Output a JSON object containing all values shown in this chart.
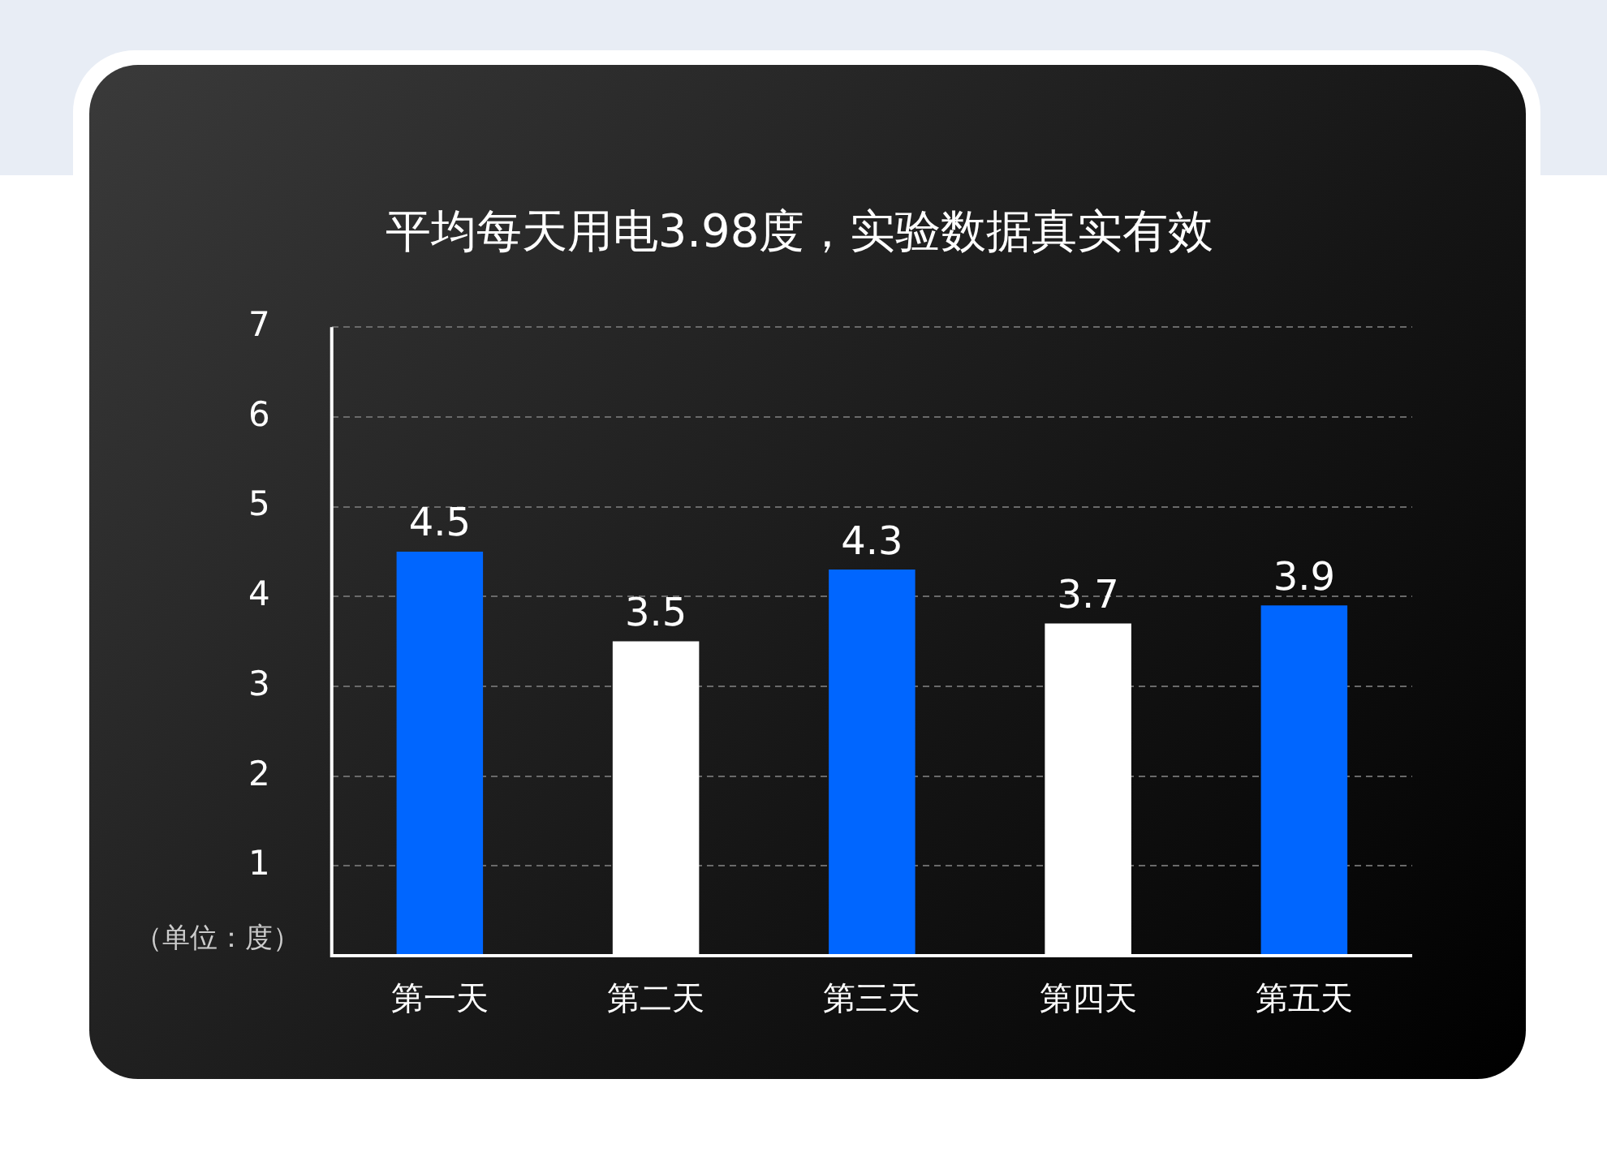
{
  "chart_data": {
    "type": "bar",
    "title": "平均每天用电3.98度，实验数据真实有效",
    "ylabel": "（单位：度）",
    "categories": [
      "第一天",
      "第二天",
      "第三天",
      "第四天",
      "第五天"
    ],
    "values": [
      4.5,
      3.5,
      4.3,
      3.7,
      3.9
    ],
    "colors": [
      "#0066ff",
      "#ffffff",
      "#0066ff",
      "#ffffff",
      "#0066ff"
    ],
    "ylim": [
      0,
      7
    ],
    "yticks": [
      {
        "value": 0,
        "label": null
      },
      1,
      2,
      3,
      4,
      5,
      6,
      7
    ],
    "grid": "y",
    "data_labels": true
  }
}
